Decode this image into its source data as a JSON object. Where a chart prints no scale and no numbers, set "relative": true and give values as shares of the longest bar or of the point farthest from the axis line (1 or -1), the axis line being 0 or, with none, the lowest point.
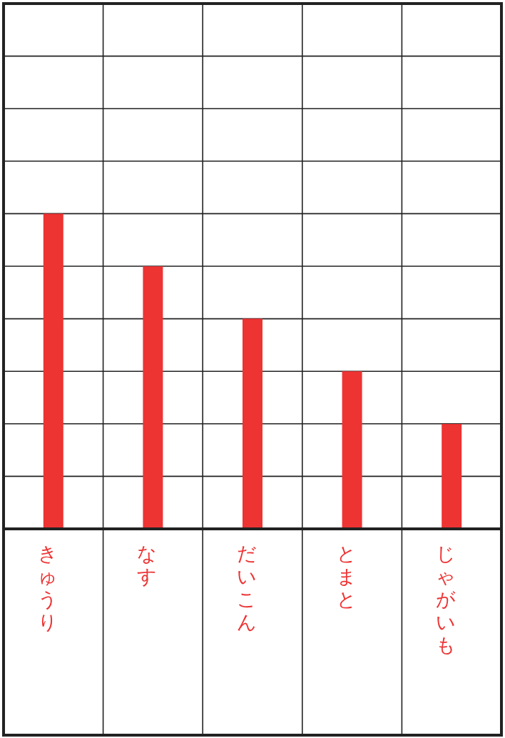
{
  "chart_data": {
    "type": "bar",
    "relative": true,
    "grid": true,
    "color": "#ee3333",
    "categories": [
      "きゅうり",
      "なす",
      "だいこん",
      "とまと",
      "じゃがいも"
    ],
    "values": [
      1,
      0.833,
      0.667,
      0.5,
      0.333
    ]
  }
}
